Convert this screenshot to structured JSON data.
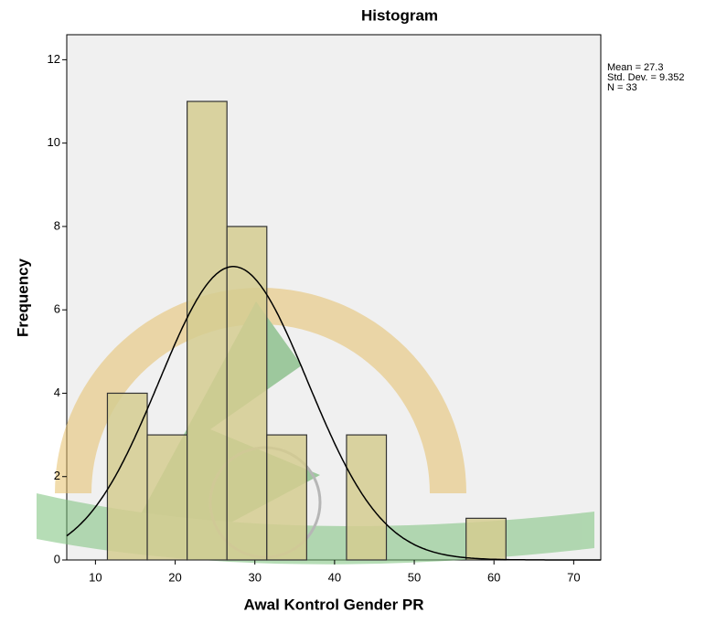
{
  "chart_data": {
    "type": "histogram",
    "title": "Histogram",
    "x_label": "Awal Kontrol Gender PR",
    "y_label": "Frequency",
    "bins": [
      11.5,
      16.5,
      21.5,
      26.5,
      31.5,
      36.5,
      41.5,
      46.5,
      51.5,
      56.5,
      61.5
    ],
    "values": [
      4,
      3,
      11,
      8,
      3,
      0,
      3,
      0,
      0,
      1
    ],
    "color": "#d5cd91",
    "xlim": [
      6.4,
      73.4
    ],
    "xticks": [
      10,
      20,
      30,
      40,
      50,
      60,
      70
    ],
    "ylim": [
      0,
      12.6
    ],
    "yticks": [
      0,
      2,
      4,
      6,
      8,
      10,
      12
    ],
    "mean": 27.3,
    "std_dev": 9.352,
    "n": 33,
    "stats_labels": [
      "Mean = 27.3",
      "Std. Dev. = 9.352",
      "N = 33"
    ]
  }
}
